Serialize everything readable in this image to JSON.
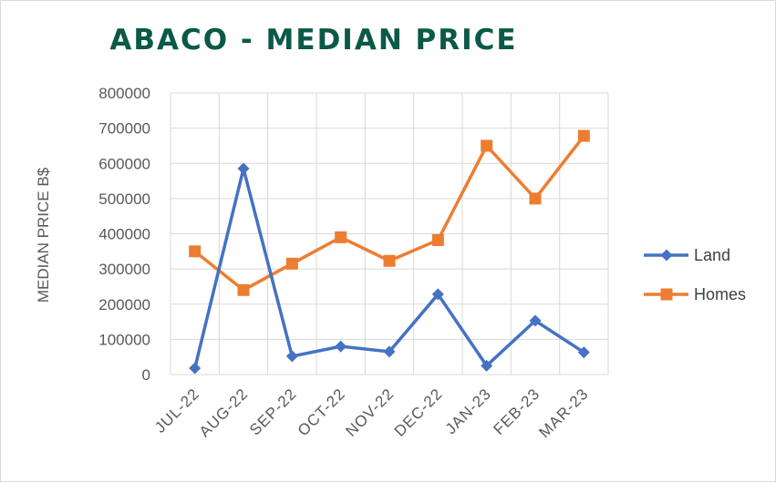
{
  "chart_data": {
    "type": "line",
    "title": "ABACO - MEDIAN PRICE",
    "ylabel": "MEDIAN PRICE B$",
    "xlabel": "",
    "categories": [
      "JUL-22",
      "AUG-22",
      "SEP-22",
      "OCT-22",
      "NOV-22",
      "DEC-22",
      "JAN-23",
      "FEB-23",
      "MAR-23"
    ],
    "ylim": [
      0,
      800000
    ],
    "yticks": [
      "0",
      "100000",
      "200000",
      "300000",
      "400000",
      "500000",
      "600000",
      "700000",
      "800000"
    ],
    "grid": true,
    "legend_position": "right",
    "series": [
      {
        "name": "Land",
        "color": "#4472c4",
        "marker": "diamond",
        "values": [
          18000,
          585000,
          52000,
          80000,
          65000,
          228000,
          25000,
          153000,
          63000
        ]
      },
      {
        "name": "Homes",
        "color": "#ed7d31",
        "marker": "square",
        "values": [
          350000,
          240000,
          315000,
          390000,
          323000,
          382000,
          650000,
          500000,
          678000
        ]
      }
    ]
  }
}
